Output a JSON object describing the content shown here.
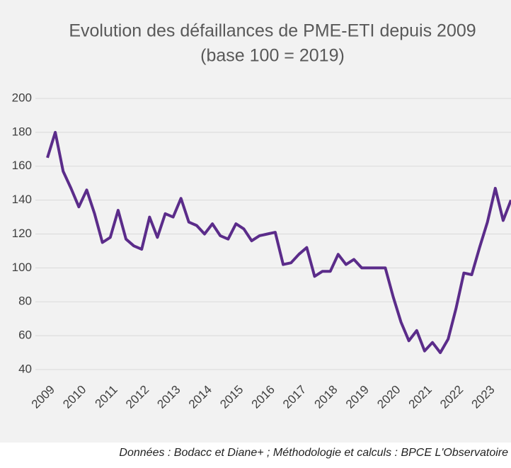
{
  "chart_data": {
    "type": "line",
    "title": "Evolution des défaillances de PME-ETI depuis 2009",
    "subtitle": "(base 100 = 2019)",
    "categories": [
      "2009",
      null,
      null,
      null,
      "2010",
      null,
      null,
      null,
      "2011",
      null,
      null,
      null,
      "2012",
      null,
      null,
      null,
      "2013",
      null,
      null,
      null,
      "2014",
      null,
      null,
      null,
      "2015",
      null,
      null,
      null,
      "2016",
      null,
      null,
      null,
      "2017",
      null,
      null,
      null,
      "2018",
      null,
      null,
      null,
      "2019",
      null,
      null,
      null,
      "2020",
      null,
      null,
      null,
      "2021",
      null,
      null,
      null,
      "2022",
      null,
      null,
      null,
      "2023",
      null,
      null,
      null
    ],
    "series": [
      {
        "color": "#5b2c8a",
        "values": [
          165,
          180,
          157,
          147,
          136,
          146,
          132,
          115,
          118,
          134,
          117,
          113,
          111,
          130,
          118,
          132,
          130,
          141,
          127,
          125,
          120,
          126,
          119,
          117,
          126,
          123,
          116,
          119,
          120,
          121,
          102,
          103,
          108,
          112,
          95,
          98,
          98,
          108,
          102,
          105,
          100,
          100,
          100,
          100,
          83,
          68,
          57,
          63,
          51,
          56,
          50,
          58,
          76,
          97,
          96,
          112,
          127,
          147,
          128,
          140
        ]
      }
    ],
    "ylim": [
      40,
      200
    ],
    "yticks": [
      40,
      60,
      80,
      100,
      120,
      140,
      160,
      180,
      200
    ],
    "grid": true,
    "source": "Données : Bodacc et Diane+ ; Méthodologie et calculs : BPCE L'Observatoire"
  }
}
